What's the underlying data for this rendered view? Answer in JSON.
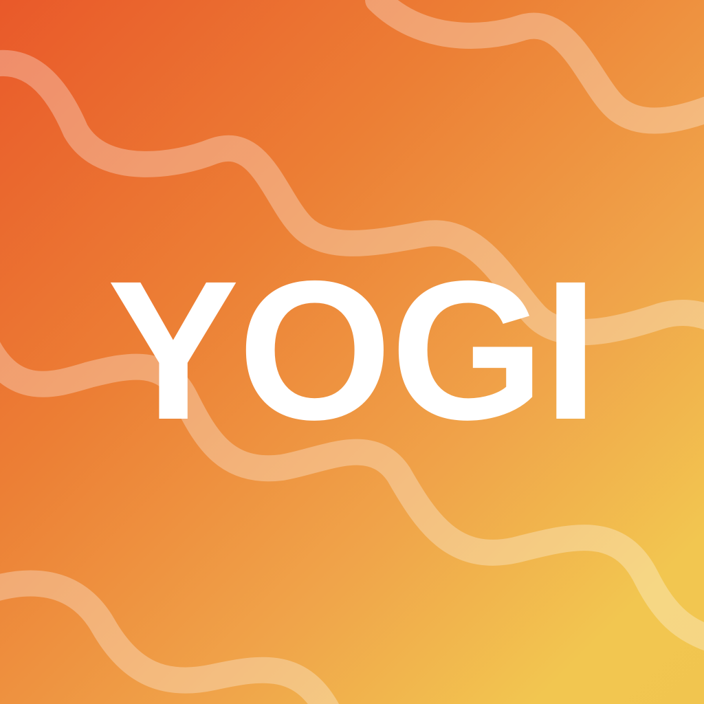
{
  "splash": {
    "title": "YOGI",
    "background_gradient": [
      "#e9592a",
      "#ec7f35",
      "#f0a44a",
      "#f2c650"
    ],
    "title_color": "#ffffff",
    "decoration": "wavy-lines"
  }
}
